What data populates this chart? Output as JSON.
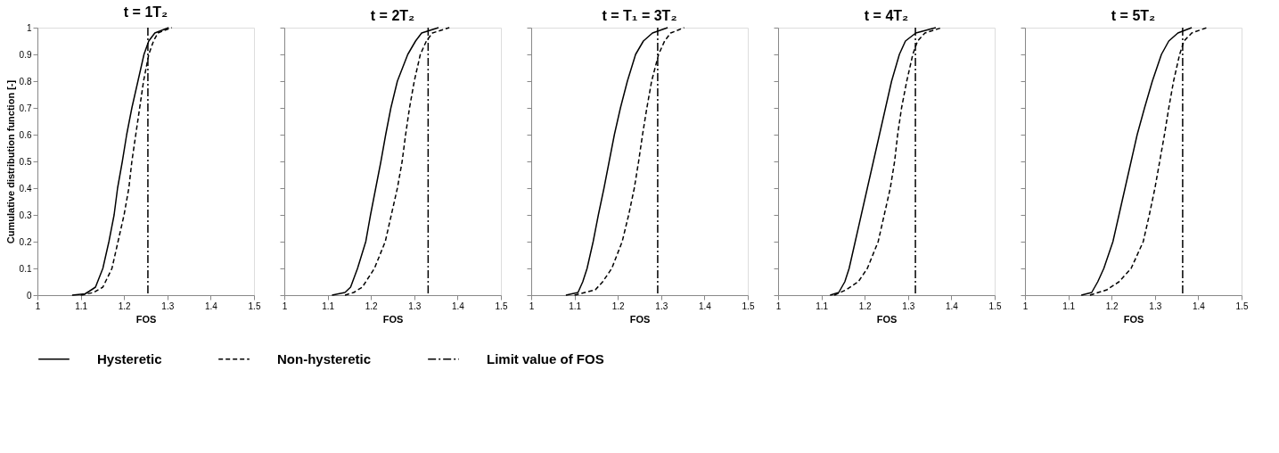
{
  "chart_data": [
    {
      "type": "line",
      "title": "t = 1T₂",
      "xlabel": "FOS",
      "ylabel": "Cumulative distribution function [-]",
      "xlim": [
        1,
        1.5
      ],
      "ylim": [
        0,
        1
      ],
      "xticks": [
        1,
        1.1,
        1.2,
        1.3,
        1.4,
        1.5
      ],
      "yticks": [
        0,
        0.1,
        0.2,
        0.3,
        0.4,
        0.5,
        0.6,
        0.7,
        0.8,
        0.9,
        1
      ],
      "grid": false,
      "legend": "bottom",
      "marker": "none",
      "series": [
        {
          "name": "Hysteretic",
          "color": "#000000",
          "line_style": "solid",
          "x": [
            1.08,
            1.11,
            1.12,
            1.134,
            1.151,
            1.165,
            1.177,
            1.185,
            1.196,
            1.206,
            1.218,
            1.232,
            1.246,
            1.257,
            1.271,
            1.303
          ],
          "values": [
            0,
            0.005,
            0.015,
            0.03,
            0.1,
            0.2,
            0.3,
            0.4,
            0.5,
            0.6,
            0.7,
            0.8,
            0.9,
            0.95,
            0.98,
            1
          ]
        },
        {
          "name": "Non-hysteretic",
          "color": "#000000",
          "line_style": "dashed",
          "x": [
            1.1,
            1.13,
            1.151,
            1.172,
            1.186,
            1.2,
            1.211,
            1.218,
            1.227,
            1.236,
            1.245,
            1.257,
            1.268,
            1.278,
            1.31
          ],
          "values": [
            0,
            0.01,
            0.03,
            0.1,
            0.2,
            0.3,
            0.4,
            0.5,
            0.6,
            0.7,
            0.8,
            0.9,
            0.95,
            0.98,
            1
          ]
        }
      ],
      "ref_lines": [
        {
          "axis": "x",
          "value": 1.255,
          "label": "Limit value of FOS",
          "color": "#000000",
          "line_style": "dashdot"
        }
      ]
    },
    {
      "type": "line",
      "title": "t = 2T₂",
      "xlabel": "FOS",
      "xlim": [
        1,
        1.5
      ],
      "ylim": [
        0,
        1
      ],
      "xticks": [
        1,
        1.1,
        1.2,
        1.3,
        1.4,
        1.5
      ],
      "yticks": [
        0,
        0.1,
        0.2,
        0.3,
        0.4,
        0.5,
        0.6,
        0.7,
        0.8,
        0.9,
        1
      ],
      "grid": false,
      "marker": "none",
      "tick_labels": "x",
      "series": [
        {
          "color": "#000000",
          "line_style": "solid",
          "x": [
            1.11,
            1.14,
            1.153,
            1.169,
            1.188,
            1.199,
            1.211,
            1.223,
            1.234,
            1.246,
            1.261,
            1.285,
            1.303,
            1.317,
            1.356
          ],
          "values": [
            0,
            0.01,
            0.03,
            0.1,
            0.2,
            0.3,
            0.4,
            0.5,
            0.6,
            0.7,
            0.8,
            0.9,
            0.95,
            0.98,
            1
          ]
        },
        {
          "color": "#000000",
          "line_style": "dashed",
          "x": [
            1.14,
            1.16,
            1.18,
            1.208,
            1.233,
            1.247,
            1.261,
            1.272,
            1.28,
            1.289,
            1.3,
            1.314,
            1.328,
            1.342,
            1.381
          ],
          "values": [
            0,
            0.01,
            0.03,
            0.1,
            0.2,
            0.3,
            0.4,
            0.5,
            0.6,
            0.7,
            0.8,
            0.9,
            0.95,
            0.98,
            1
          ]
        }
      ],
      "ref_lines": [
        {
          "axis": "x",
          "value": 1.332,
          "color": "#000000",
          "line_style": "dashdot"
        }
      ]
    },
    {
      "type": "line",
      "title": "t = T₁ = 3T₂",
      "xlabel": "FOS",
      "xlim": [
        1,
        1.5
      ],
      "ylim": [
        0,
        1
      ],
      "xticks": [
        1,
        1.1,
        1.2,
        1.3,
        1.4,
        1.5
      ],
      "yticks": [
        0,
        0.1,
        0.2,
        0.3,
        0.4,
        0.5,
        0.6,
        0.7,
        0.8,
        0.9,
        1
      ],
      "grid": false,
      "marker": "none",
      "tick_labels": "x",
      "series": [
        {
          "color": "#000000",
          "line_style": "solid",
          "x": [
            1.08,
            1.108,
            1.119,
            1.129,
            1.143,
            1.155,
            1.168,
            1.18,
            1.192,
            1.206,
            1.222,
            1.241,
            1.259,
            1.28,
            1.315
          ],
          "values": [
            0,
            0.01,
            0.05,
            0.1,
            0.2,
            0.3,
            0.4,
            0.5,
            0.6,
            0.7,
            0.8,
            0.9,
            0.95,
            0.98,
            1
          ]
        },
        {
          "color": "#000000",
          "line_style": "dashed",
          "x": [
            1.1,
            1.148,
            1.165,
            1.186,
            1.21,
            1.225,
            1.238,
            1.248,
            1.257,
            1.267,
            1.278,
            1.294,
            1.308,
            1.322,
            1.353
          ],
          "values": [
            0,
            0.02,
            0.05,
            0.1,
            0.2,
            0.3,
            0.4,
            0.5,
            0.6,
            0.7,
            0.8,
            0.9,
            0.95,
            0.98,
            1
          ]
        }
      ],
      "ref_lines": [
        {
          "axis": "x",
          "value": 1.292,
          "color": "#000000",
          "line_style": "dashdot"
        }
      ]
    },
    {
      "type": "line",
      "title": "t = 4T₂",
      "xlabel": "FOS",
      "xlim": [
        1,
        1.5
      ],
      "ylim": [
        0,
        1
      ],
      "xticks": [
        1,
        1.1,
        1.2,
        1.3,
        1.4,
        1.5
      ],
      "yticks": [
        0,
        0.1,
        0.2,
        0.3,
        0.4,
        0.5,
        0.6,
        0.7,
        0.8,
        0.9,
        1
      ],
      "grid": false,
      "marker": "none",
      "tick_labels": "x",
      "series": [
        {
          "color": "#000000",
          "line_style": "solid",
          "x": [
            1.12,
            1.14,
            1.154,
            1.164,
            1.178,
            1.192,
            1.206,
            1.22,
            1.234,
            1.248,
            1.262,
            1.28,
            1.294,
            1.318,
            1.364
          ],
          "values": [
            0,
            0.01,
            0.05,
            0.1,
            0.2,
            0.3,
            0.4,
            0.5,
            0.6,
            0.7,
            0.8,
            0.9,
            0.95,
            0.98,
            1
          ]
        },
        {
          "color": "#000000",
          "line_style": "dashed",
          "x": [
            1.13,
            1.157,
            1.185,
            1.206,
            1.231,
            1.245,
            1.259,
            1.269,
            1.276,
            1.285,
            1.297,
            1.311,
            1.322,
            1.339,
            1.378
          ],
          "values": [
            0,
            0.02,
            0.05,
            0.1,
            0.2,
            0.3,
            0.4,
            0.5,
            0.6,
            0.7,
            0.8,
            0.9,
            0.95,
            0.98,
            1
          ]
        }
      ],
      "ref_lines": [
        {
          "axis": "x",
          "value": 1.317,
          "color": "#000000",
          "line_style": "dashdot"
        }
      ]
    },
    {
      "type": "line",
      "title": "t = 5T₂",
      "xlabel": "FOS",
      "xlim": [
        1,
        1.5
      ],
      "ylim": [
        0,
        1
      ],
      "xticks": [
        1,
        1.1,
        1.2,
        1.3,
        1.4,
        1.5
      ],
      "yticks": [
        0,
        0.1,
        0.2,
        0.3,
        0.4,
        0.5,
        0.6,
        0.7,
        0.8,
        0.9,
        1
      ],
      "grid": false,
      "marker": "none",
      "tick_labels": "x",
      "series": [
        {
          "color": "#000000",
          "line_style": "solid",
          "x": [
            1.13,
            1.154,
            1.168,
            1.182,
            1.203,
            1.217,
            1.231,
            1.245,
            1.259,
            1.276,
            1.294,
            1.315,
            1.332,
            1.353,
            1.385
          ],
          "values": [
            0,
            0.01,
            0.05,
            0.1,
            0.2,
            0.3,
            0.4,
            0.5,
            0.6,
            0.7,
            0.8,
            0.9,
            0.95,
            0.98,
            1
          ]
        },
        {
          "color": "#000000",
          "line_style": "dashed",
          "x": [
            1.15,
            1.189,
            1.217,
            1.245,
            1.273,
            1.287,
            1.3,
            1.311,
            1.322,
            1.332,
            1.343,
            1.357,
            1.367,
            1.385,
            1.42
          ],
          "values": [
            0,
            0.02,
            0.05,
            0.1,
            0.2,
            0.3,
            0.4,
            0.5,
            0.6,
            0.7,
            0.8,
            0.9,
            0.95,
            0.98,
            1
          ]
        }
      ],
      "ref_lines": [
        {
          "axis": "x",
          "value": 1.364,
          "color": "#000000",
          "line_style": "dashdot"
        }
      ]
    }
  ]
}
